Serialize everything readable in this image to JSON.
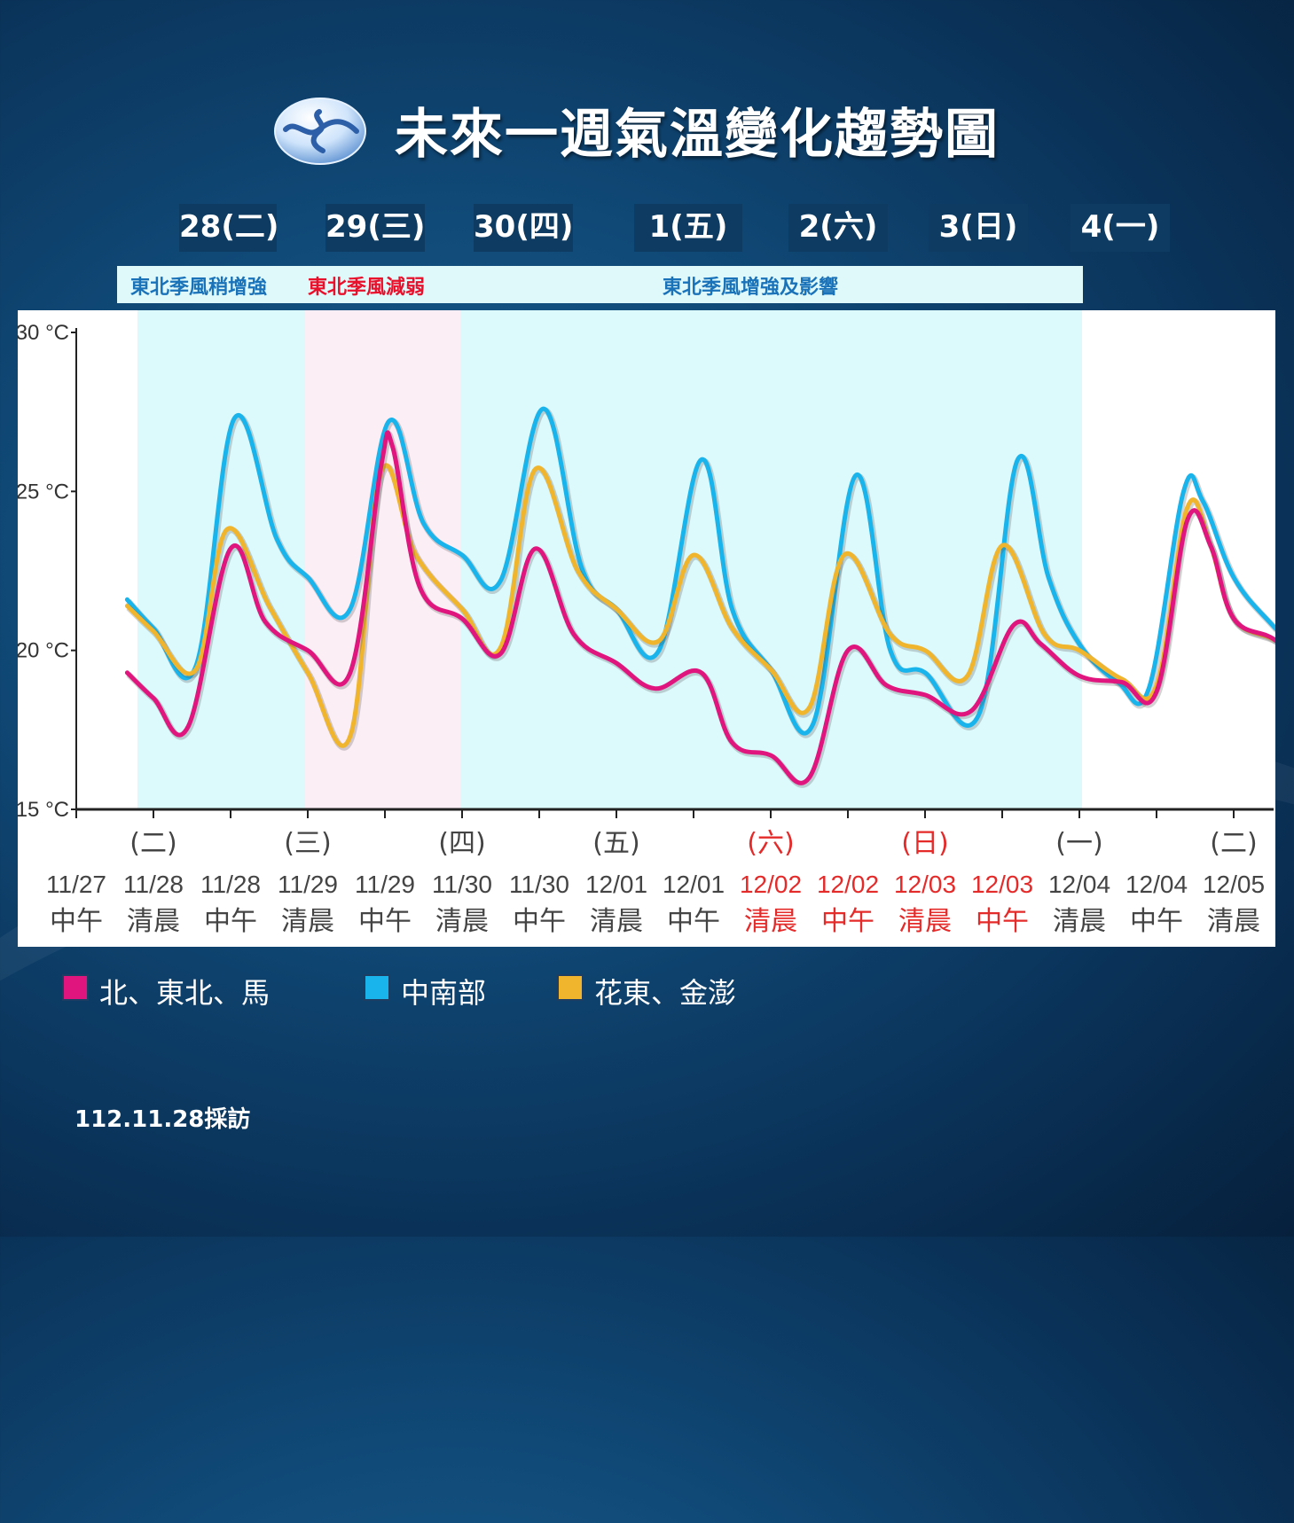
{
  "title": "未來一週氣溫變化趨勢圖",
  "day_headers": [
    "28(二)",
    "29(三)",
    "30(四)",
    "1(五)",
    "2(六)",
    "3(日)",
    "4(一)"
  ],
  "monsoon_labels": {
    "a": "東北季風稍增強",
    "b": "東北季風減弱",
    "c": "東北季風增強及影響"
  },
  "footer_note": "112.11.28採訪",
  "colors": {
    "north": "#e0157e",
    "central_south": "#19b4ec",
    "east": "#f0b52c",
    "shade_blue": "#dcf9fc",
    "shade_pink": "#fbeef5",
    "holiday_red": "#e52a2a",
    "monsoon_blue": "#1a72b8",
    "monsoon_red": "#e8102b"
  },
  "chart_data": {
    "type": "line",
    "y_tick_labels": [
      "30 °C",
      "25 °C",
      "20 °C",
      "15 °C"
    ],
    "y_ticks": [
      30,
      25,
      20,
      15
    ],
    "ylim": [
      15,
      30
    ],
    "x_labels": [
      {
        "day": "",
        "date": "11/27",
        "period": "中午",
        "holiday": false
      },
      {
        "day": "(二)",
        "date": "11/28",
        "period": "清晨",
        "holiday": false
      },
      {
        "day": "",
        "date": "11/28",
        "period": "中午",
        "holiday": false
      },
      {
        "day": "(三)",
        "date": "11/29",
        "period": "清晨",
        "holiday": false
      },
      {
        "day": "",
        "date": "11/29",
        "period": "中午",
        "holiday": false
      },
      {
        "day": "(四)",
        "date": "11/30",
        "period": "清晨",
        "holiday": false
      },
      {
        "day": "",
        "date": "11/30",
        "period": "中午",
        "holiday": false
      },
      {
        "day": "(五)",
        "date": "12/01",
        "period": "清晨",
        "holiday": false
      },
      {
        "day": "",
        "date": "12/01",
        "period": "中午",
        "holiday": false
      },
      {
        "day": "(六)",
        "date": "12/02",
        "period": "清晨",
        "holiday": true
      },
      {
        "day": "",
        "date": "12/02",
        "period": "中午",
        "holiday": true
      },
      {
        "day": "(日)",
        "date": "12/03",
        "period": "清晨",
        "holiday": true
      },
      {
        "day": "",
        "date": "12/03",
        "period": "中午",
        "holiday": true
      },
      {
        "day": "(一)",
        "date": "12/04",
        "period": "清晨",
        "holiday": false
      },
      {
        "day": "",
        "date": "12/04",
        "period": "中午",
        "holiday": false
      },
      {
        "day": "(二)",
        "date": "12/05",
        "period": "清晨",
        "holiday": false
      }
    ],
    "series": [
      {
        "name": "北、東北、馬",
        "color": "#e0157e",
        "points": [
          [
            0.66,
            19.3
          ],
          [
            1.0,
            18.5
          ],
          [
            1.45,
            17.6
          ],
          [
            2.0,
            23.2
          ],
          [
            2.45,
            20.9
          ],
          [
            3.0,
            20.0
          ],
          [
            3.55,
            19.3
          ],
          [
            3.95,
            25.8
          ],
          [
            4.1,
            26.4
          ],
          [
            4.45,
            22.0
          ],
          [
            5.0,
            21.0
          ],
          [
            5.5,
            19.9
          ],
          [
            5.95,
            23.2
          ],
          [
            6.45,
            20.5
          ],
          [
            7.0,
            19.6
          ],
          [
            7.5,
            18.8
          ],
          [
            8.1,
            19.3
          ],
          [
            8.5,
            17.1
          ],
          [
            9.0,
            16.7
          ],
          [
            9.5,
            16.0
          ],
          [
            10.0,
            20.0
          ],
          [
            10.5,
            18.9
          ],
          [
            11.0,
            18.6
          ],
          [
            11.6,
            18.1
          ],
          [
            12.15,
            20.8
          ],
          [
            12.5,
            20.2
          ],
          [
            13.0,
            19.2
          ],
          [
            13.55,
            19.0
          ],
          [
            14.0,
            18.7
          ],
          [
            14.4,
            24.1
          ],
          [
            14.7,
            23.3
          ],
          [
            15.0,
            21.0
          ],
          [
            15.55,
            20.3
          ],
          [
            16.0,
            19.0
          ]
        ]
      },
      {
        "name": "中南部",
        "color": "#19b4ec",
        "points": [
          [
            0.66,
            21.6
          ],
          [
            1.0,
            20.7
          ],
          [
            1.55,
            19.5
          ],
          [
            2.05,
            27.3
          ],
          [
            2.6,
            23.5
          ],
          [
            3.0,
            22.3
          ],
          [
            3.55,
            21.3
          ],
          [
            4.05,
            27.2
          ],
          [
            4.5,
            24.0
          ],
          [
            5.0,
            23.0
          ],
          [
            5.5,
            22.2
          ],
          [
            6.05,
            27.6
          ],
          [
            6.55,
            22.6
          ],
          [
            7.0,
            21.3
          ],
          [
            7.55,
            20.0
          ],
          [
            8.1,
            26.0
          ],
          [
            8.5,
            21.3
          ],
          [
            9.0,
            19.4
          ],
          [
            9.55,
            17.7
          ],
          [
            10.1,
            25.5
          ],
          [
            10.55,
            20.0
          ],
          [
            11.0,
            19.3
          ],
          [
            11.7,
            18.0
          ],
          [
            12.2,
            26.0
          ],
          [
            12.6,
            22.3
          ],
          [
            13.0,
            20.2
          ],
          [
            13.5,
            19.0
          ],
          [
            13.9,
            18.8
          ],
          [
            14.35,
            25.0
          ],
          [
            14.6,
            24.7
          ],
          [
            15.0,
            22.3
          ],
          [
            15.5,
            20.8
          ],
          [
            16.0,
            19.6
          ]
        ]
      },
      {
        "name": "花東、金澎",
        "color": "#f0b52c",
        "points": [
          [
            0.66,
            21.4
          ],
          [
            1.0,
            20.6
          ],
          [
            1.55,
            19.4
          ],
          [
            1.95,
            23.8
          ],
          [
            2.5,
            21.4
          ],
          [
            3.0,
            19.3
          ],
          [
            3.55,
            17.3
          ],
          [
            3.95,
            25.6
          ],
          [
            4.4,
            23.0
          ],
          [
            5.0,
            21.3
          ],
          [
            5.5,
            20.1
          ],
          [
            5.95,
            25.7
          ],
          [
            6.5,
            22.5
          ],
          [
            7.0,
            21.3
          ],
          [
            7.55,
            20.3
          ],
          [
            8.0,
            23.0
          ],
          [
            8.5,
            20.7
          ],
          [
            9.0,
            19.4
          ],
          [
            9.5,
            18.2
          ],
          [
            9.95,
            23.0
          ],
          [
            10.55,
            20.5
          ],
          [
            11.0,
            20.0
          ],
          [
            11.55,
            19.2
          ],
          [
            12.0,
            23.3
          ],
          [
            12.55,
            20.5
          ],
          [
            13.0,
            20.0
          ],
          [
            13.55,
            19.1
          ],
          [
            14.0,
            18.9
          ],
          [
            14.4,
            24.5
          ],
          [
            14.7,
            23.3
          ],
          [
            15.0,
            21.0
          ],
          [
            15.55,
            20.3
          ],
          [
            16.0,
            19.4
          ]
        ]
      }
    ]
  }
}
